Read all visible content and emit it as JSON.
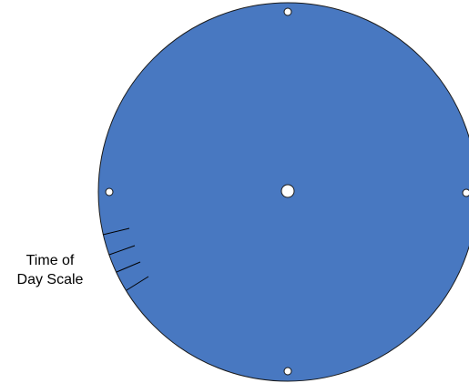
{
  "diagram": {
    "label": {
      "line1": "Time of",
      "line2": "Day Scale"
    },
    "colors": {
      "disc_fill": "#4878C1",
      "disc_stroke": "#1A1A1A",
      "hole_fill": "#FFFFFF",
      "hole_stroke": "#1A1A1A",
      "tick_stroke": "#000000",
      "label_text": "#000000"
    },
    "shapes": {
      "disc": "circle",
      "center_hole": "circle",
      "edge_holes": [
        "top",
        "right",
        "bottom",
        "left"
      ],
      "scale_ticks": 4
    }
  }
}
